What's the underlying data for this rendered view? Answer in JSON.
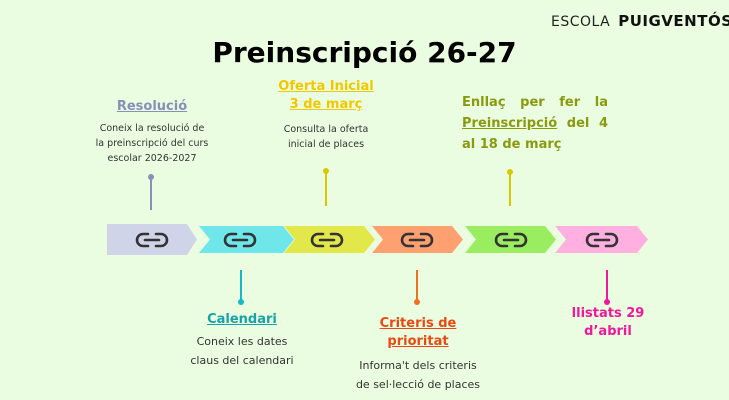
{
  "logo": {
    "escola": "ESCOLA",
    "name": "PUIGVENTÓS"
  },
  "title": "Preinscripció 26-27",
  "steps": [
    {
      "heading": "Resolució",
      "desc": [
        "Coneix la resolució de",
        "la preinscripció del curs",
        "escolar 2026-2027"
      ],
      "color": "#8890b8",
      "fill": "#cfd4e8"
    },
    {
      "heading": "Calendari",
      "desc": [
        "Coneix les dates",
        "claus del calendari"
      ],
      "color": "#17a3a8",
      "fill": "#6fe6ea"
    },
    {
      "heading": [
        "Oferta Inicial",
        "3 de març"
      ],
      "desc": [
        "Consulta la oferta",
        "inicial de places"
      ],
      "color": "#f0c800",
      "fill": "#e3e84a"
    },
    {
      "heading": [
        "Criteris de",
        "prioritat"
      ],
      "desc": [
        "Informa't dels criteris",
        "de sel·lecció de places"
      ],
      "color": "#e84a12",
      "fill": "#ffa070"
    },
    {
      "heading": [
        "Enllaç per fer la",
        "Preinscripció",
        "del 4",
        "al 18 de març"
      ],
      "color": "#8a9a10",
      "fill": "#9aed60"
    },
    {
      "heading": [
        "llistats 29",
        "d’abril"
      ],
      "color": "#f0189a",
      "fill": "#ffb0e0"
    }
  ],
  "icon": "link-icon"
}
